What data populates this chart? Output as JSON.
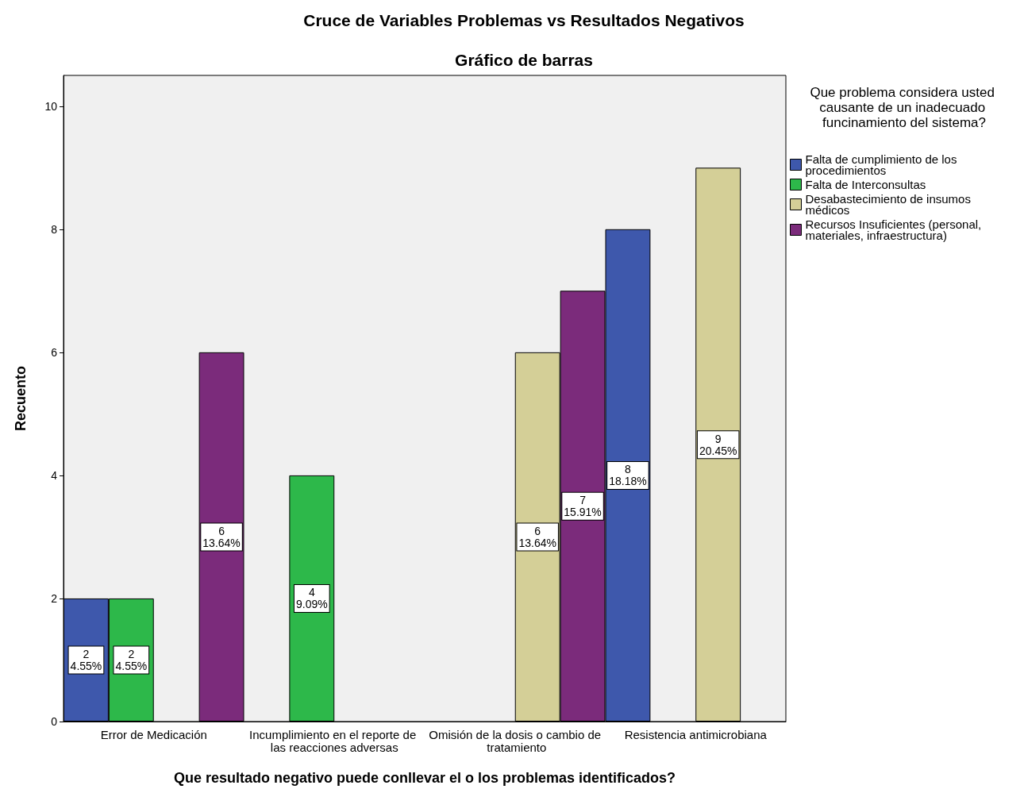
{
  "chart_data": {
    "type": "bar",
    "title": "Cruce de Variables Problemas vs Resultados Negativos",
    "subtitle": "Gráfico de barras",
    "xlabel": "Que resultado negativo puede conllevar el o los problemas identificados?",
    "ylabel": "Recuento",
    "legend_title": "Que problema considera usted causante de un inadecuado funcinamiento del sistema?",
    "categories": [
      "Error de Medicación",
      "Incumplimiento en el reporte de las reacciones adversas",
      "Omisión de la dosis o cambio de tratamiento",
      "Resistencia antimicrobiana"
    ],
    "series": [
      {
        "name": "Falta de cumplimiento de los procedimientos",
        "color": "#3e58ac",
        "values": [
          2,
          null,
          null,
          8
        ],
        "value_labels": [
          "2\n4.55%",
          null,
          null,
          "8\n18.18%"
        ]
      },
      {
        "name": "Falta de Interconsultas",
        "color": "#2db84a",
        "values": [
          2,
          4,
          null,
          null
        ],
        "value_labels": [
          "2\n4.55%",
          "4\n9.09%",
          null,
          null
        ]
      },
      {
        "name": "Desabastecimiento de insumos médicos",
        "color": "#d4cf97",
        "values": [
          null,
          null,
          6,
          9
        ],
        "value_labels": [
          null,
          null,
          "6\n13.64%",
          "9\n20.45%"
        ]
      },
      {
        "name": "Recursos Insuficientes (personal, materiales, infraestructura)",
        "color": "#7b2b7b",
        "values": [
          6,
          null,
          7,
          null
        ],
        "value_labels": [
          "6\n13.64%",
          null,
          "7\n15.91%",
          null
        ]
      }
    ],
    "ylim": [
      0,
      10.5
    ],
    "yticks": [
      0,
      2,
      4,
      6,
      8,
      10
    ],
    "grid": false,
    "legend": "right"
  }
}
